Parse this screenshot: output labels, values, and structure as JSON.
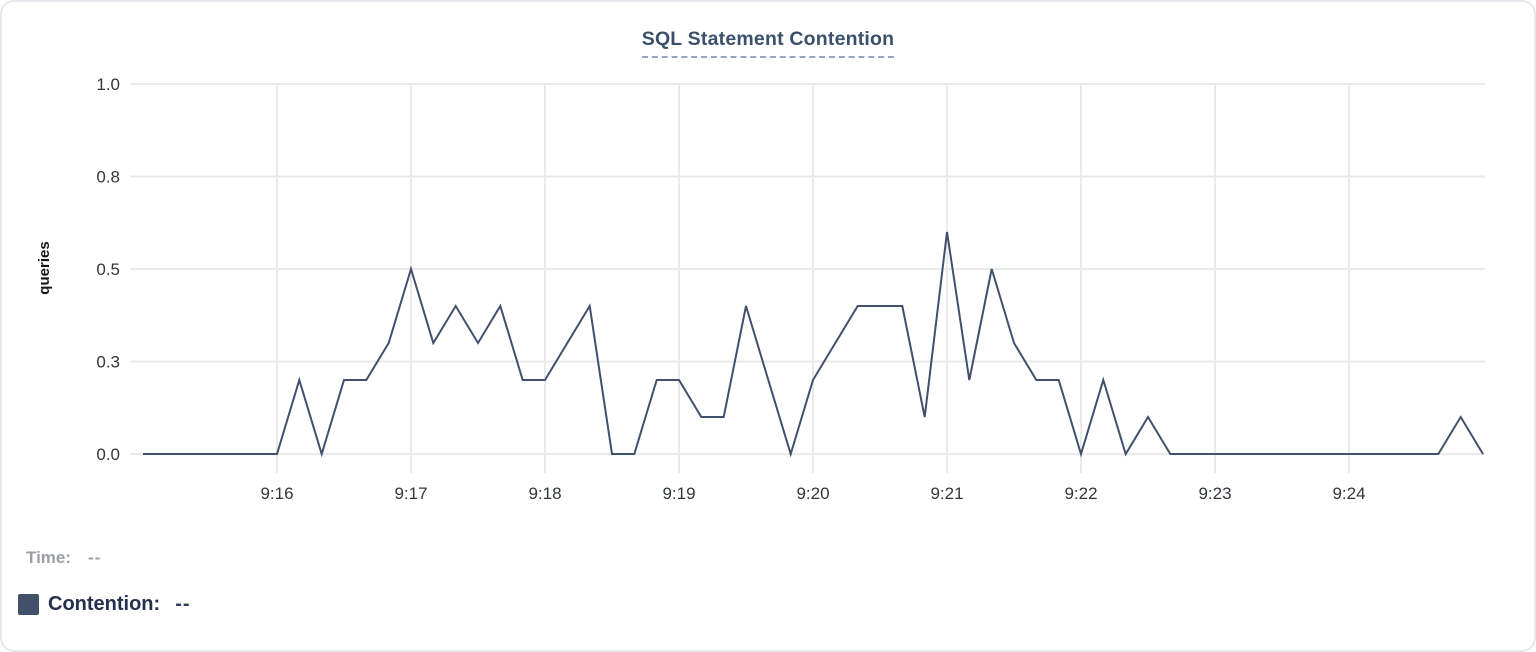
{
  "chart_data": {
    "type": "line",
    "title": "SQL Statement Contention",
    "xlabel": "",
    "ylabel": "queries",
    "ylim": [
      0,
      1
    ],
    "grid": true,
    "y_ticks": [
      {
        "label": "0.0",
        "value": 0
      },
      {
        "label": "0.3",
        "value": 0.25
      },
      {
        "label": "0.5",
        "value": 0.5
      },
      {
        "label": "0.8",
        "value": 0.75
      },
      {
        "label": "1.0",
        "value": 1.0
      }
    ],
    "x_range": [
      "9:15:00",
      "9:25:00"
    ],
    "x_ticks": [
      {
        "label": "9:16",
        "minute": 1
      },
      {
        "label": "9:17",
        "minute": 2
      },
      {
        "label": "9:18",
        "minute": 3
      },
      {
        "label": "9:19",
        "minute": 4
      },
      {
        "label": "9:20",
        "minute": 5
      },
      {
        "label": "9:21",
        "minute": 6
      },
      {
        "label": "9:22",
        "minute": 7
      },
      {
        "label": "9:23",
        "minute": 8
      },
      {
        "label": "9:24",
        "minute": 9
      }
    ],
    "interval_seconds": 10,
    "x": [
      "9:15:00",
      "9:15:10",
      "9:15:20",
      "9:15:30",
      "9:15:40",
      "9:15:50",
      "9:16:00",
      "9:16:10",
      "9:16:20",
      "9:16:30",
      "9:16:40",
      "9:16:50",
      "9:17:00",
      "9:17:10",
      "9:17:20",
      "9:17:30",
      "9:17:40",
      "9:17:50",
      "9:18:00",
      "9:18:10",
      "9:18:20",
      "9:18:30",
      "9:18:40",
      "9:18:50",
      "9:19:00",
      "9:19:10",
      "9:19:20",
      "9:19:30",
      "9:19:40",
      "9:19:50",
      "9:20:00",
      "9:20:10",
      "9:20:20",
      "9:20:30",
      "9:20:40",
      "9:20:50",
      "9:21:00",
      "9:21:10",
      "9:21:20",
      "9:21:30",
      "9:21:40",
      "9:21:50",
      "9:22:00",
      "9:22:10",
      "9:22:20",
      "9:22:30",
      "9:22:40",
      "9:22:50",
      "9:23:00",
      "9:23:10",
      "9:23:20",
      "9:23:30",
      "9:23:40",
      "9:23:50",
      "9:24:00",
      "9:24:10",
      "9:24:20",
      "9:24:30",
      "9:24:40",
      "9:24:50",
      "9:25:00"
    ],
    "series": [
      {
        "name": "Contention",
        "color": "#41506c",
        "values": [
          0,
          0,
          0,
          0,
          0,
          0,
          0,
          0.2,
          0,
          0.2,
          0.2,
          0.3,
          0.5,
          0.3,
          0.4,
          0.3,
          0.4,
          0.2,
          0.2,
          0.3,
          0.4,
          0,
          0,
          0.2,
          0.2,
          0.1,
          0.1,
          0.4,
          0.2,
          0,
          0.2,
          0.3,
          0.4,
          0.4,
          0.4,
          0.1,
          0.6,
          0.2,
          0.5,
          0.3,
          0.2,
          0.2,
          0,
          0.2,
          0,
          0.1,
          0,
          0,
          0,
          0,
          0,
          0,
          0,
          0,
          0,
          0,
          0,
          0,
          0,
          0.1,
          0
        ]
      }
    ],
    "legend_position": "bottom-left"
  },
  "legend": {
    "time_label": "Time:",
    "time_value": "--",
    "contention_label": "Contention:",
    "contention_value": "--",
    "swatch_color": "#42506c"
  },
  "colors": {
    "series": "#41506c",
    "gridline": "#e9eaec",
    "title": "#3b506b",
    "title_underline": "#98a4c6",
    "tick_text": "#33363b",
    "time_text": "#9b9ea4",
    "contention_text": "#25304e"
  }
}
